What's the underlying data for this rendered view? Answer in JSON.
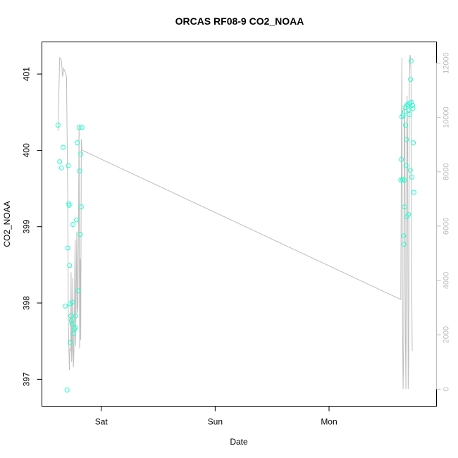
{
  "chart_data": {
    "type": "scatter",
    "title": "ORCAS RF08-9 CO2_NOAA",
    "xlabel": "Date",
    "ylabel": "CO2_NOAA",
    "x_tick_labels": [
      "Sat",
      "Sun",
      "Mon"
    ],
    "x_tick_values": [
      1.0,
      2.0,
      3.0
    ],
    "xlim": [
      0.55,
      3.86
    ],
    "ylim": [
      396.8,
      401.25
    ],
    "y_ticks": [
      397,
      398,
      399,
      400,
      401
    ],
    "y2lim": [
      -200,
      12300
    ],
    "y2_ticks": [
      0,
      2000,
      4000,
      6000,
      8000,
      10000,
      12000
    ],
    "grid": false,
    "colors": {
      "points": "#22ffcc",
      "line": "#bdbdbd",
      "axes": "#000000",
      "right_axis": "#bdbdbd"
    },
    "series": [
      {
        "kind": "points",
        "axis": "left",
        "points": [
          [
            0.62,
            400.33
          ],
          [
            0.635,
            399.85
          ],
          [
            0.65,
            399.77
          ],
          [
            0.665,
            400.04
          ],
          [
            0.685,
            397.96
          ],
          [
            0.7,
            396.86
          ],
          [
            0.705,
            398.72
          ],
          [
            0.71,
            399.8
          ],
          [
            0.715,
            399.3
          ],
          [
            0.718,
            399.28
          ],
          [
            0.722,
            398.49
          ],
          [
            0.726,
            397.99
          ],
          [
            0.728,
            397.48
          ],
          [
            0.733,
            397.83
          ],
          [
            0.738,
            397.77
          ],
          [
            0.742,
            397.73
          ],
          [
            0.747,
            398.01
          ],
          [
            0.752,
            399.03
          ],
          [
            0.758,
            397.6
          ],
          [
            0.765,
            397.66
          ],
          [
            0.772,
            397.68
          ],
          [
            0.775,
            397.83
          ],
          [
            0.782,
            399.09
          ],
          [
            0.79,
            400.1
          ],
          [
            0.797,
            398.16
          ],
          [
            0.805,
            400.3
          ],
          [
            0.81,
            399.73
          ],
          [
            0.815,
            398.9
          ],
          [
            0.82,
            399.95
          ],
          [
            0.825,
            399.26
          ],
          [
            0.83,
            400.3
          ],
          [
            3.63,
            399.61
          ],
          [
            3.635,
            399.88
          ],
          [
            3.64,
            400.44
          ],
          [
            3.645,
            399.62
          ],
          [
            3.65,
            400.46
          ],
          [
            3.655,
            398.88
          ],
          [
            3.657,
            398.77
          ],
          [
            3.66,
            399.61
          ],
          [
            3.662,
            399.26
          ],
          [
            3.665,
            400.51
          ],
          [
            3.668,
            400.56
          ],
          [
            3.672,
            400.33
          ],
          [
            3.675,
            399.8
          ],
          [
            3.68,
            400.14
          ],
          [
            3.683,
            399.13
          ],
          [
            3.688,
            400.6
          ],
          [
            3.693,
            400.58
          ],
          [
            3.697,
            399.16
          ],
          [
            3.7,
            400.53
          ],
          [
            3.705,
            400.47
          ],
          [
            3.708,
            400.62
          ],
          [
            3.713,
            399.74
          ],
          [
            3.716,
            400.93
          ],
          [
            3.72,
            401.17
          ],
          [
            3.724,
            400.63
          ],
          [
            3.728,
            399.65
          ],
          [
            3.733,
            400.59
          ],
          [
            3.736,
            400.55
          ],
          [
            3.74,
            400.1
          ],
          [
            3.745,
            399.45
          ]
        ]
      },
      {
        "kind": "line",
        "axis": "right",
        "points": [
          [
            0.62,
            9500
          ],
          [
            0.635,
            12200
          ],
          [
            0.65,
            12100
          ],
          [
            0.66,
            11500
          ],
          [
            0.67,
            11800
          ],
          [
            0.685,
            11650
          ],
          [
            0.695,
            11500
          ],
          [
            0.705,
            7200
          ],
          [
            0.71,
            2500
          ],
          [
            0.715,
            1600
          ],
          [
            0.72,
            700
          ],
          [
            0.725,
            1500
          ],
          [
            0.73,
            1400
          ],
          [
            0.735,
            4300
          ],
          [
            0.74,
            1000
          ],
          [
            0.745,
            1500
          ],
          [
            0.75,
            4100
          ],
          [
            0.755,
            800
          ],
          [
            0.76,
            1300
          ],
          [
            0.77,
            5500
          ],
          [
            0.775,
            1600
          ],
          [
            0.785,
            5800
          ],
          [
            0.79,
            2800
          ],
          [
            0.795,
            3000
          ],
          [
            0.8,
            6000
          ],
          [
            0.805,
            9700
          ],
          [
            0.81,
            1500
          ],
          [
            0.815,
            4800
          ],
          [
            0.82,
            1800
          ],
          [
            0.825,
            9200
          ],
          [
            0.83,
            8800
          ],
          [
            3.63,
            3300
          ],
          [
            3.635,
            8700
          ],
          [
            3.64,
            12200
          ],
          [
            3.645,
            2500
          ],
          [
            3.65,
            0
          ],
          [
            3.655,
            1500
          ],
          [
            3.66,
            9500
          ],
          [
            3.665,
            10500
          ],
          [
            3.67,
            2000
          ],
          [
            3.675,
            0
          ],
          [
            3.68,
            6200
          ],
          [
            3.685,
            10800
          ],
          [
            3.69,
            9000
          ],
          [
            3.695,
            0
          ],
          [
            3.7,
            1200
          ],
          [
            3.705,
            11200
          ],
          [
            3.71,
            12300
          ],
          [
            3.715,
            12200
          ],
          [
            3.72,
            11600
          ],
          [
            3.725,
            4200
          ],
          [
            3.73,
            1400
          ]
        ]
      }
    ]
  }
}
